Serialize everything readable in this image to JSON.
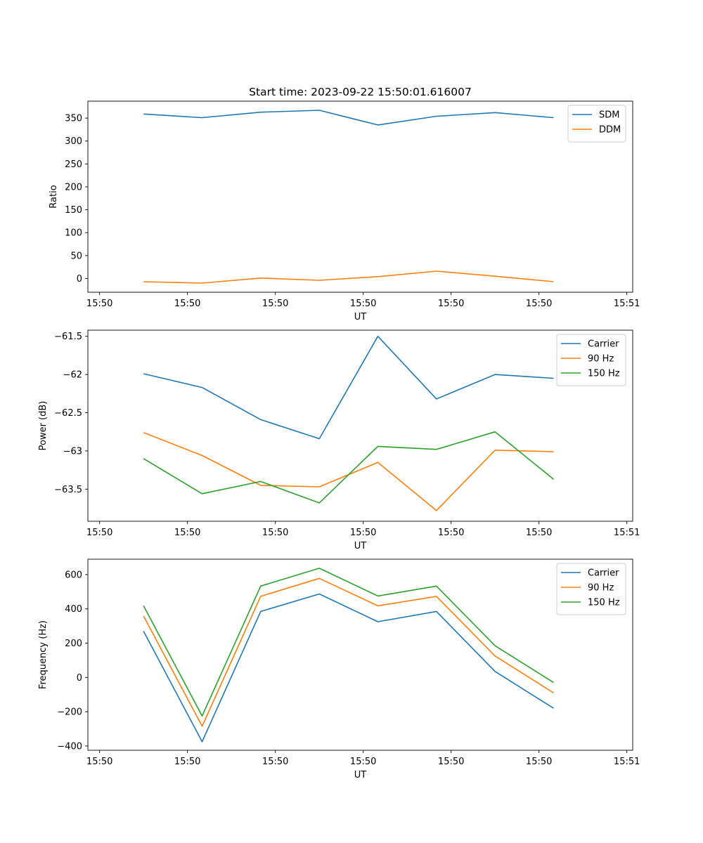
{
  "title": "Start time: 2023-09-22 15:50:01.616007",
  "colors": {
    "blue": "#1f77b4",
    "orange": "#ff7f0e",
    "green": "#2ca02c"
  },
  "chart_data": [
    {
      "type": "line",
      "xlabel": "UT",
      "ylabel": "Ratio",
      "xticks": [
        "15:50",
        "15:50",
        "15:50",
        "15:50",
        "15:50",
        "15:50",
        "15:51"
      ],
      "xlim": [
        -0.2,
        9.1
      ],
      "ylim": [
        -30,
        387
      ],
      "yticks": [
        0,
        50,
        100,
        150,
        200,
        250,
        300,
        350
      ],
      "x": [
        0.75,
        1.75,
        2.75,
        3.75,
        4.75,
        5.75,
        6.75,
        7.75
      ],
      "legend": "top-right",
      "series": [
        {
          "name": "SDM",
          "color": "#1f77b4",
          "values": [
            359,
            351,
            363,
            367,
            335,
            354,
            362,
            351
          ]
        },
        {
          "name": "DDM",
          "color": "#ff7f0e",
          "values": [
            -7,
            -10,
            1,
            -4,
            4,
            16,
            5,
            -7
          ]
        }
      ]
    },
    {
      "type": "line",
      "xlabel": "UT",
      "ylabel": "Power (dB)",
      "xticks": [
        "15:50",
        "15:50",
        "15:50",
        "15:50",
        "15:50",
        "15:50",
        "15:51"
      ],
      "xlim": [
        -0.2,
        9.1
      ],
      "ylim": [
        -63.92,
        -61.42
      ],
      "yticks": [
        -63.5,
        -63.0,
        -62.5,
        -62.0,
        -61.5
      ],
      "x": [
        0.75,
        1.75,
        2.75,
        3.75,
        4.75,
        5.75,
        6.75,
        7.75
      ],
      "legend": "top-right",
      "series": [
        {
          "name": "Carrier",
          "color": "#1f77b4",
          "values": [
            -61.99,
            -62.17,
            -62.59,
            -62.84,
            -61.5,
            -62.32,
            -62.0,
            -62.05
          ]
        },
        {
          "name": "90 Hz",
          "color": "#ff7f0e",
          "values": [
            -62.76,
            -63.06,
            -63.45,
            -63.47,
            -63.15,
            -63.78,
            -62.99,
            -63.01
          ]
        },
        {
          "name": "150 Hz",
          "color": "#2ca02c",
          "values": [
            -63.1,
            -63.56,
            -63.4,
            -63.68,
            -62.94,
            -62.98,
            -62.75,
            -63.37
          ]
        }
      ]
    },
    {
      "type": "line",
      "xlabel": "UT",
      "ylabel": "Frequency (Hz)",
      "xticks": [
        "15:50",
        "15:50",
        "15:50",
        "15:50",
        "15:50",
        "15:50",
        "15:51"
      ],
      "xlim": [
        -0.2,
        9.1
      ],
      "ylim": [
        -425,
        690
      ],
      "yticks": [
        -400,
        -200,
        0,
        200,
        400,
        600
      ],
      "x": [
        0.75,
        1.75,
        2.75,
        3.75,
        4.75,
        5.75,
        6.75,
        7.75
      ],
      "legend": "top-right",
      "series": [
        {
          "name": "Carrier",
          "color": "#1f77b4",
          "values": [
            270,
            -375,
            385,
            487,
            325,
            385,
            35,
            -180
          ]
        },
        {
          "name": "90 Hz",
          "color": "#ff7f0e",
          "values": [
            358,
            -285,
            473,
            578,
            418,
            473,
            125,
            -90
          ]
        },
        {
          "name": "150 Hz",
          "color": "#2ca02c",
          "values": [
            418,
            -225,
            533,
            637,
            475,
            533,
            185,
            -30
          ]
        }
      ]
    }
  ]
}
